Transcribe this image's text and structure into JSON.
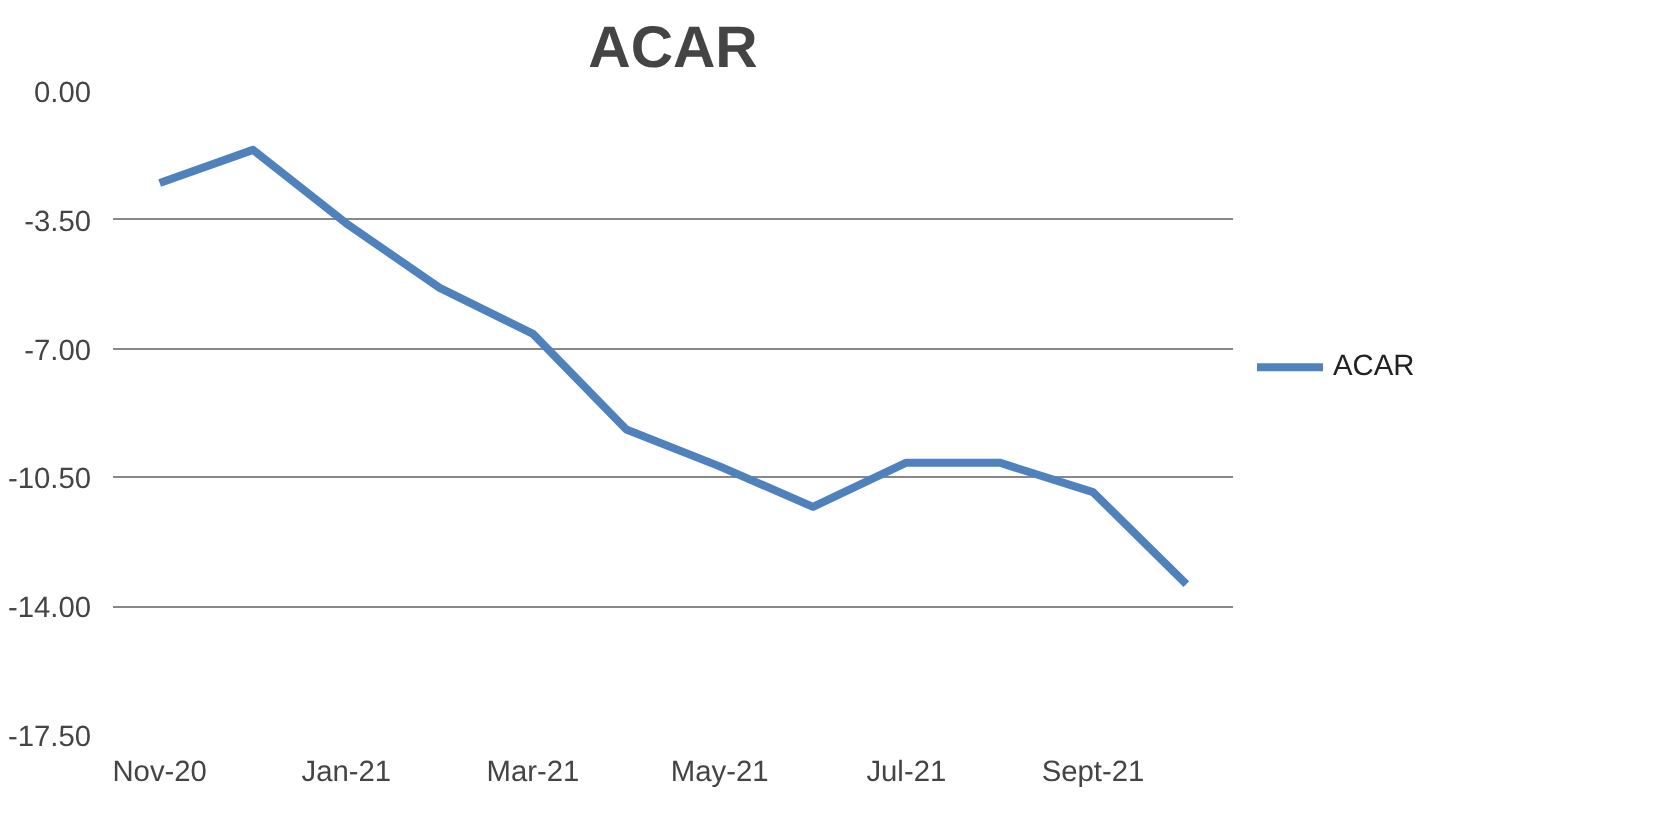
{
  "chart_data": {
    "type": "line",
    "title": "ACAR",
    "categories": [
      "Nov-20",
      null,
      "Jan-21",
      null,
      "Mar-21",
      null,
      "May-21",
      null,
      "Jul-21",
      null,
      "Sept-21",
      null
    ],
    "series": [
      {
        "name": "ACAR",
        "color": "#4f81bd",
        "values": [
          -2.5,
          -1.6,
          -3.6,
          -5.35,
          -6.6,
          -9.2,
          -10.2,
          -11.3,
          -10.1,
          -10.1,
          -10.9,
          -13.4
        ]
      }
    ],
    "ylim": [
      -17.5,
      0
    ],
    "yticks": [
      {
        "value": 0,
        "label": "0.00"
      },
      {
        "value": -3.5,
        "label": "-3.50"
      },
      {
        "value": -7,
        "label": "-7.00"
      },
      {
        "value": -10.5,
        "label": "-10.50"
      },
      {
        "value": -14,
        "label": "-14.00"
      },
      {
        "value": -17.5,
        "label": "-17.50"
      }
    ],
    "grid": "y",
    "legend": "right",
    "marker": "none",
    "line_style": "solid"
  }
}
